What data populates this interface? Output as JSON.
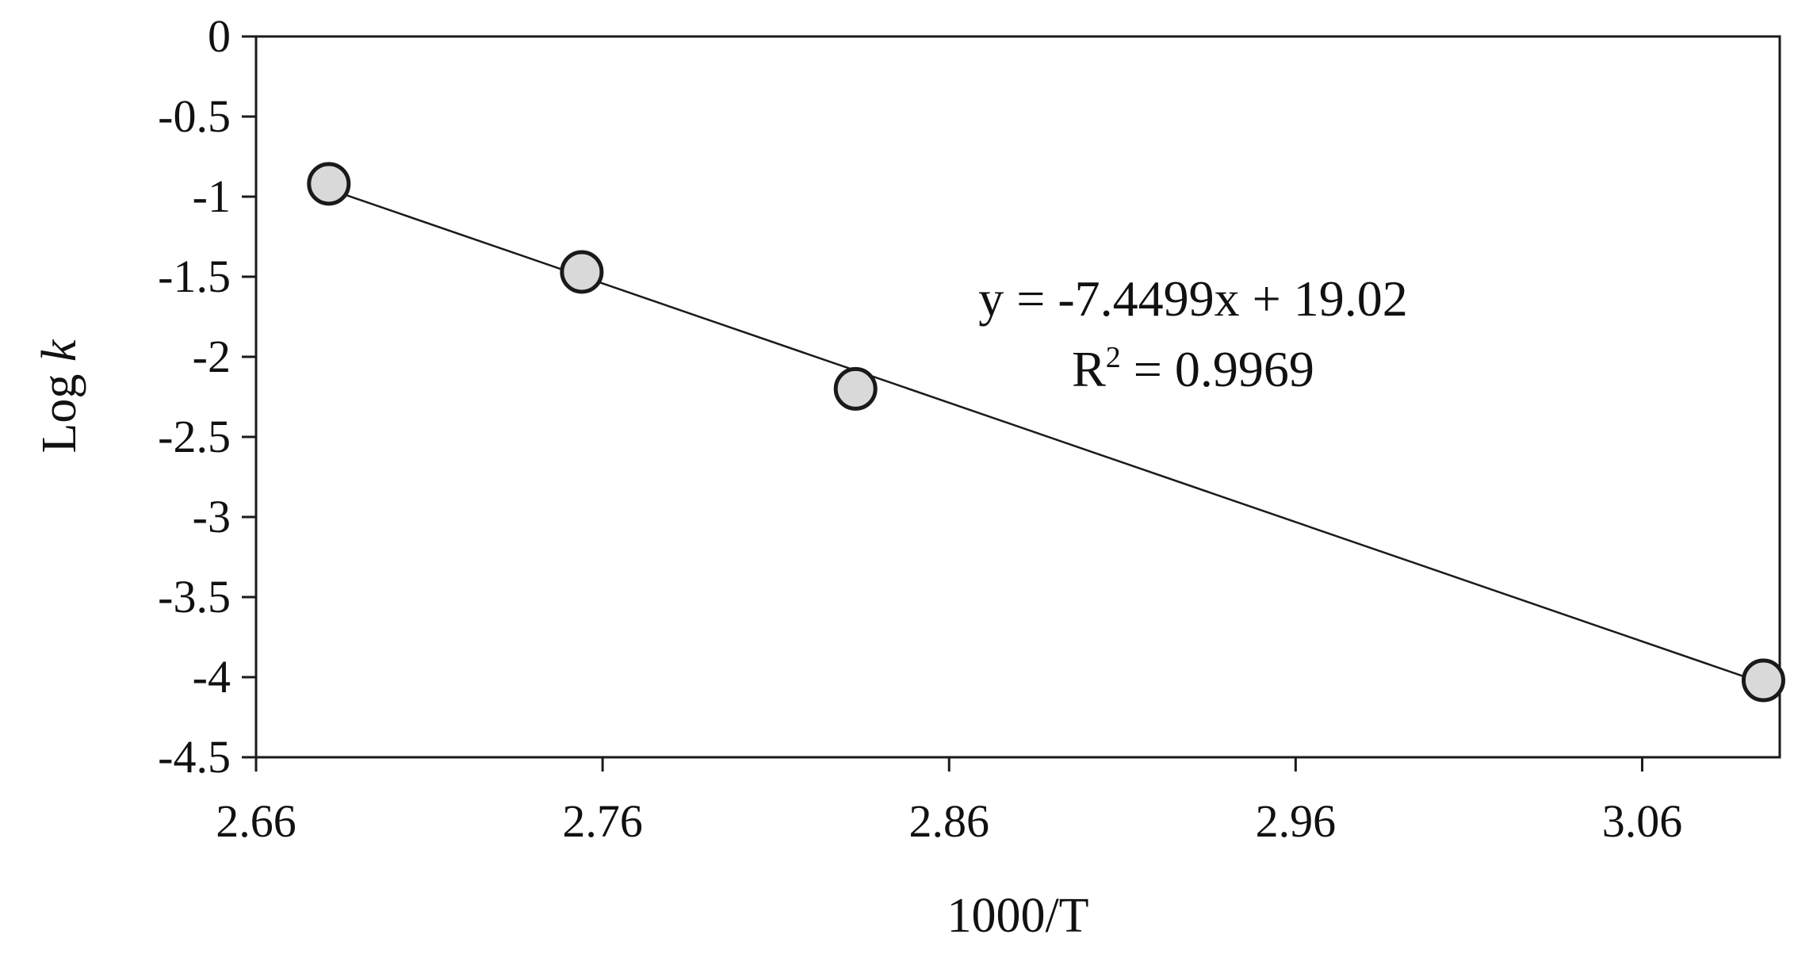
{
  "chart_data": {
    "type": "scatter",
    "title": "",
    "xlabel": "1000/T",
    "ylabel_prefix": "Log ",
    "ylabel_var": "k",
    "xlim": [
      2.66,
      3.0997
    ],
    "ylim": [
      -4.5,
      0
    ],
    "xticks": [
      "2.66",
      "2.76",
      "2.86",
      "2.96",
      "3.06"
    ],
    "yticks": [
      "0",
      "-0.5",
      "-1",
      "-1.5",
      "-2",
      "-2.5",
      "-3",
      "-3.5",
      "-4",
      "-4.5"
    ],
    "grid": false,
    "legend": "none",
    "series": [
      {
        "x": [
          2.681,
          2.754,
          2.833,
          3.095
        ],
        "y": [
          -0.92,
          -1.47,
          -2.2,
          -4.02
        ]
      }
    ],
    "trendline": {
      "slope": -7.4499,
      "intercept": 19.02,
      "x_range": [
        2.681,
        3.095
      ],
      "equation": "y = -7.4499x + 19.02",
      "r2_prefix": "R",
      "r2_sup": "2",
      "r2_value": " = 0.9969"
    },
    "colors": {
      "marker_fill": "#d9d9d9",
      "marker_stroke": "#1a1a1a",
      "line": "#1a1a1a",
      "axis": "#1a1a1a"
    }
  }
}
